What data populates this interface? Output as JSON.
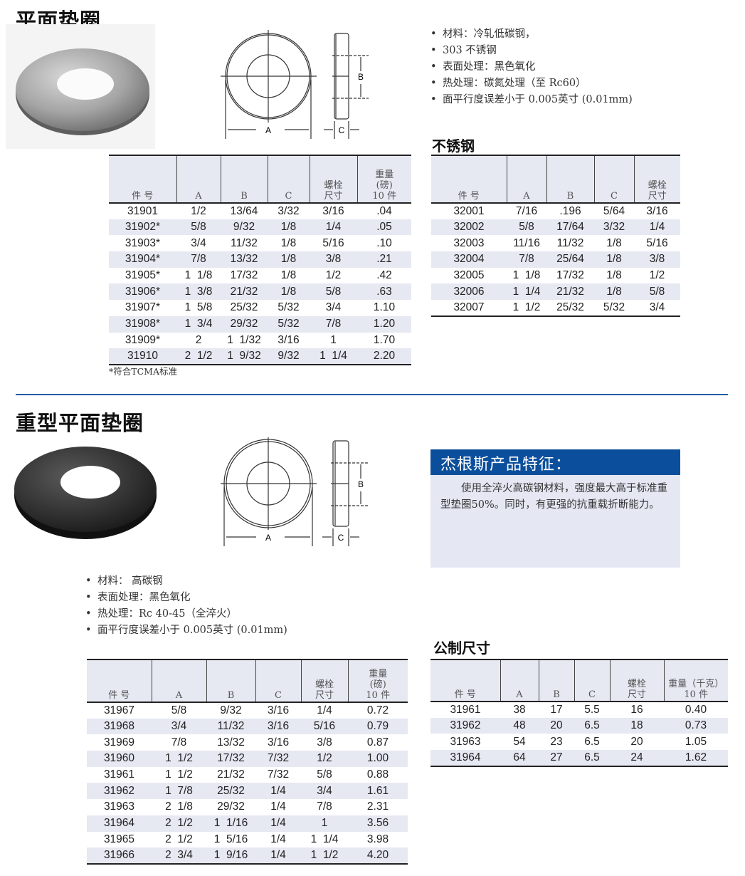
{
  "section1": {
    "title": "平面垫圈",
    "bullets": [
      "材料：冷轧低碳钢，",
      "303 不锈钢",
      "表面处理：黑色氧化",
      "热处理：碳氮处理（至 Rc60）",
      "面平行度误差小于 0.005英寸 (0.01mm)"
    ],
    "diagram_labels": {
      "a": "A",
      "b": "B",
      "c": "C"
    },
    "table": {
      "headers": [
        "件 号",
        "A",
        "B",
        "C",
        "螺栓\n尺寸",
        "重量\n(磅)\n10 件"
      ],
      "rows": [
        [
          "31901",
          "1/2",
          "13/64",
          "3/32",
          "3/16",
          ".04"
        ],
        [
          "31902*",
          "5/8",
          "9/32",
          "1/8",
          "1/4",
          ".05"
        ],
        [
          "31903*",
          "3/4",
          "11/32",
          "1/8",
          "5/16",
          ".10"
        ],
        [
          "31904*",
          "7/8",
          "13/32",
          "1/8",
          "3/8",
          ".21"
        ],
        [
          "31905*",
          "1  1/8",
          "17/32",
          "1/8",
          "1/2",
          ".42"
        ],
        [
          "31906*",
          "1  3/8",
          "21/32",
          "1/8",
          "5/8",
          ".63"
        ],
        [
          "31907*",
          "1  5/8",
          "25/32",
          "5/32",
          "3/4",
          "1.10"
        ],
        [
          "31908*",
          "1  3/4",
          "29/32",
          "5/32",
          "7/8",
          "1.20"
        ],
        [
          "31909*",
          "2",
          "1  1/32",
          "3/16",
          "1",
          "1.70"
        ],
        [
          "31910",
          "2  1/2",
          "1  9/32",
          "9/32",
          "1  1/4",
          "2.20"
        ]
      ]
    },
    "footnote": "*符合TCMA标准",
    "stainless": {
      "title": "不锈钢",
      "headers": [
        "件 号",
        "A",
        "B",
        "C",
        "螺栓\n尺寸"
      ],
      "rows": [
        [
          "32001",
          "7/16",
          ".196",
          "5/64",
          "3/16"
        ],
        [
          "32002",
          "5/8",
          "17/64",
          "3/32",
          "1/4"
        ],
        [
          "32003",
          "11/16",
          "11/32",
          "1/8",
          "5/16"
        ],
        [
          "32004",
          "7/8",
          "25/64",
          "1/8",
          "3/8"
        ],
        [
          "32005",
          "1  1/8",
          "17/32",
          "1/8",
          "1/2"
        ],
        [
          "32006",
          "1  1/4",
          "21/32",
          "1/8",
          "5/8"
        ],
        [
          "32007",
          "1  1/2",
          "25/32",
          "5/32",
          "3/4"
        ]
      ]
    }
  },
  "section2": {
    "title": "重型平面垫圈",
    "diagram_labels": {
      "a": "A",
      "b": "B",
      "c": "C"
    },
    "feature": {
      "title": "杰根斯产品特征：",
      "text": "使用全淬火高碳钢材料，强度最大高于标准重型垫圈50%。同时，有更强的抗重载折断能力。"
    },
    "bullets": [
      "材料：   高碳钢",
      "表面处理：黑色氧化",
      "热处理：Rc 40-45（全淬火）",
      "面平行度误差小于 0.005英寸 (0.01mm)"
    ],
    "table": {
      "headers": [
        "件 号",
        "A",
        "B",
        "C",
        "螺栓\n尺寸",
        "重量\n(磅)\n10 件"
      ],
      "rows": [
        [
          "31967",
          "5/8",
          "9/32",
          "3/16",
          "1/4",
          "0.72"
        ],
        [
          "31968",
          "3/4",
          "11/32",
          "3/16",
          "5/16",
          "0.79"
        ],
        [
          "31969",
          "7/8",
          "13/32",
          "3/16",
          "3/8",
          "0.87"
        ],
        [
          "31960",
          "1  1/2",
          "17/32",
          "7/32",
          "1/2",
          "1.00"
        ],
        [
          "31961",
          "1  1/2",
          "21/32",
          "7/32",
          "5/8",
          "0.88"
        ],
        [
          "31962",
          "1  7/8",
          "25/32",
          "1/4",
          "3/4",
          "1.61"
        ],
        [
          "31963",
          "2  1/8",
          "29/32",
          "1/4",
          "7/8",
          "2.31"
        ],
        [
          "31964",
          "2  1/2",
          "1  1/16",
          "1/4",
          "1",
          "3.56"
        ],
        [
          "31965",
          "2  1/2",
          "1  5/16",
          "1/4",
          "1  1/4",
          "3.98"
        ],
        [
          "31966",
          "2  3/4",
          "1  9/16",
          "1/4",
          "1  1/2",
          "4.20"
        ]
      ]
    },
    "metric": {
      "title": "公制尺寸",
      "headers": [
        "件 号",
        "A",
        "B",
        "C",
        "螺栓\n尺寸",
        "重量（千克）\n10 件"
      ],
      "rows": [
        [
          "31961",
          "38",
          "17",
          "5.5",
          "16",
          "0.40"
        ],
        [
          "31962",
          "48",
          "20",
          "6.5",
          "18",
          "0.73"
        ],
        [
          "31963",
          "54",
          "23",
          "6.5",
          "20",
          "1.05"
        ],
        [
          "31964",
          "64",
          "27",
          "6.5",
          "24",
          "1.62"
        ]
      ]
    }
  },
  "colors": {
    "accent": "#0b4f9c",
    "row_shade": "#e6e8f2",
    "divider": "#1f5fa8"
  }
}
